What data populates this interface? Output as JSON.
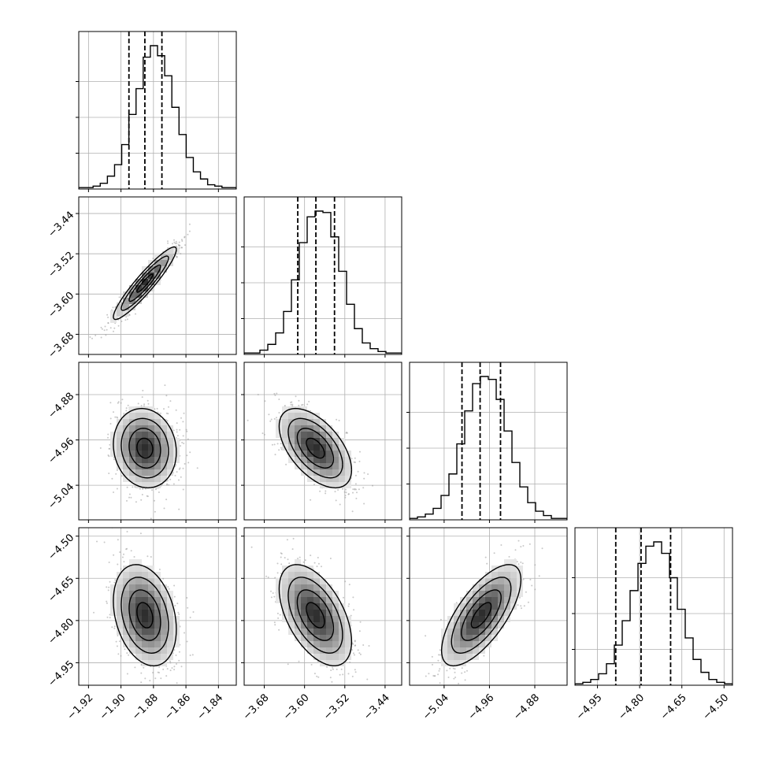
{
  "chart_data": {
    "type": "corner",
    "grid": true,
    "colors": {
      "line": "#000000",
      "grid": "#b0b0b0",
      "scatter": "#9a9a9a"
    },
    "params": [
      {
        "ticks": [
          -1.92,
          -1.9,
          -1.88,
          -1.86,
          -1.84
        ],
        "tick_labels": [
          "−1.92",
          "−1.90",
          "−1.88",
          "−1.86",
          "−1.84"
        ],
        "range": [
          -1.926,
          -1.829
        ],
        "mean": -1.8853,
        "sd": 0.0097,
        "quantiles": [
          -1.8951,
          -1.8853,
          -1.8748
        ]
      },
      {
        "ticks": [
          -3.68,
          -3.6,
          -3.52,
          -3.44
        ],
        "tick_labels": [
          "−3.68",
          "−3.60",
          "−3.52",
          "−3.44"
        ],
        "range": [
          -3.72,
          -3.407
        ],
        "mean": -3.5785,
        "sd": 0.036,
        "quantiles": [
          -3.6135,
          -3.5775,
          -3.5405
        ]
      },
      {
        "ticks": [
          -5.04,
          -4.96,
          -4.88
        ],
        "tick_labels": [
          "−5.04",
          "−4.96",
          "−4.88"
        ],
        "range": [
          -5.101,
          -4.823
        ],
        "mean": -4.9745,
        "sd": 0.035,
        "quantiles": [
          -5.0085,
          -4.9765,
          -4.9405
        ]
      },
      {
        "ticks": [
          -4.95,
          -4.8,
          -4.65,
          -4.5
        ],
        "tick_labels": [
          "−4.95",
          "−4.80",
          "−4.65",
          "−4.50"
        ],
        "range": [
          -5.03,
          -4.47
        ],
        "mean": -4.781,
        "sd": 0.09,
        "quantiles": [
          -4.885,
          -4.795,
          -4.69
        ]
      }
    ],
    "correlations": [
      [
        1,
        0.93,
        -0.1,
        -0.28
      ],
      [
        0.93,
        1,
        -0.55,
        -0.52
      ],
      [
        -0.1,
        -0.55,
        1,
        0.7
      ],
      [
        -0.28,
        -0.52,
        0.7,
        1
      ]
    ],
    "histograms": [
      [
        1,
        1,
        2,
        4,
        9,
        17,
        31,
        52,
        70,
        92,
        100,
        93,
        79,
        57,
        38,
        22,
        12,
        7,
        3,
        2,
        1,
        1
      ],
      [
        1,
        1,
        3,
        7,
        15,
        30,
        52,
        78,
        96,
        100,
        99,
        82,
        58,
        35,
        18,
        8,
        4,
        2,
        1,
        1
      ],
      [
        1,
        2,
        4,
        8,
        17,
        32,
        53,
        76,
        95,
        100,
        98,
        84,
        62,
        40,
        23,
        12,
        6,
        3,
        1,
        1
      ],
      [
        1,
        2,
        4,
        8,
        15,
        28,
        45,
        66,
        85,
        97,
        100,
        92,
        75,
        53,
        33,
        18,
        9,
        4,
        2,
        1
      ]
    ]
  }
}
